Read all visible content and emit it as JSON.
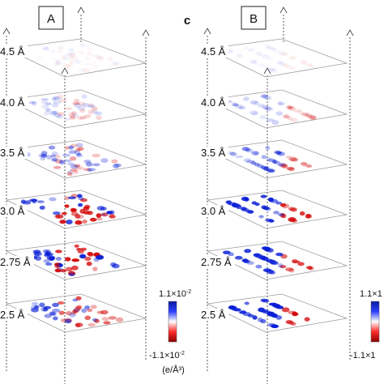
{
  "panels": [
    {
      "id": "A",
      "label": "A",
      "slices": [
        {
          "height": "4.5 Å",
          "intensity": 0.06,
          "pattern": "A"
        },
        {
          "height": "4.0 Å",
          "intensity": 0.22,
          "pattern": "A"
        },
        {
          "height": "3.5 Å",
          "intensity": 0.5,
          "pattern": "A"
        },
        {
          "height": "3.0 Å",
          "intensity": 0.95,
          "pattern": "A"
        },
        {
          "height": "2.75 Å",
          "intensity": 1.0,
          "pattern": "A"
        },
        {
          "height": "2.5 Å",
          "intensity": 0.75,
          "pattern": "A"
        }
      ]
    },
    {
      "id": "B",
      "label": "B",
      "subfigure": "c",
      "slices": [
        {
          "height": "4.5 Å",
          "intensity": 0.05,
          "pattern": "B"
        },
        {
          "height": "4.0 Å",
          "intensity": 0.2,
          "pattern": "B"
        },
        {
          "height": "3.5 Å",
          "intensity": 0.45,
          "pattern": "B"
        },
        {
          "height": "3.0 Å",
          "intensity": 0.9,
          "pattern": "B"
        },
        {
          "height": "2.75 Å",
          "intensity": 0.85,
          "pattern": "B"
        },
        {
          "height": "2.5 Å",
          "intensity": 1.0,
          "pattern": "B"
        }
      ]
    }
  ],
  "colorbar": {
    "max_label": "1.1×10",
    "max_exp": "-2",
    "min_label": "-1.1×10",
    "min_exp": "-2",
    "unit": "(e/Å³)",
    "max_label_b": "1.1×1",
    "min_label_b": "-1.1×1",
    "colors": {
      "positive": "#0a1fd6",
      "negative": "#d40a0a",
      "zero": "#ffffff"
    }
  }
}
